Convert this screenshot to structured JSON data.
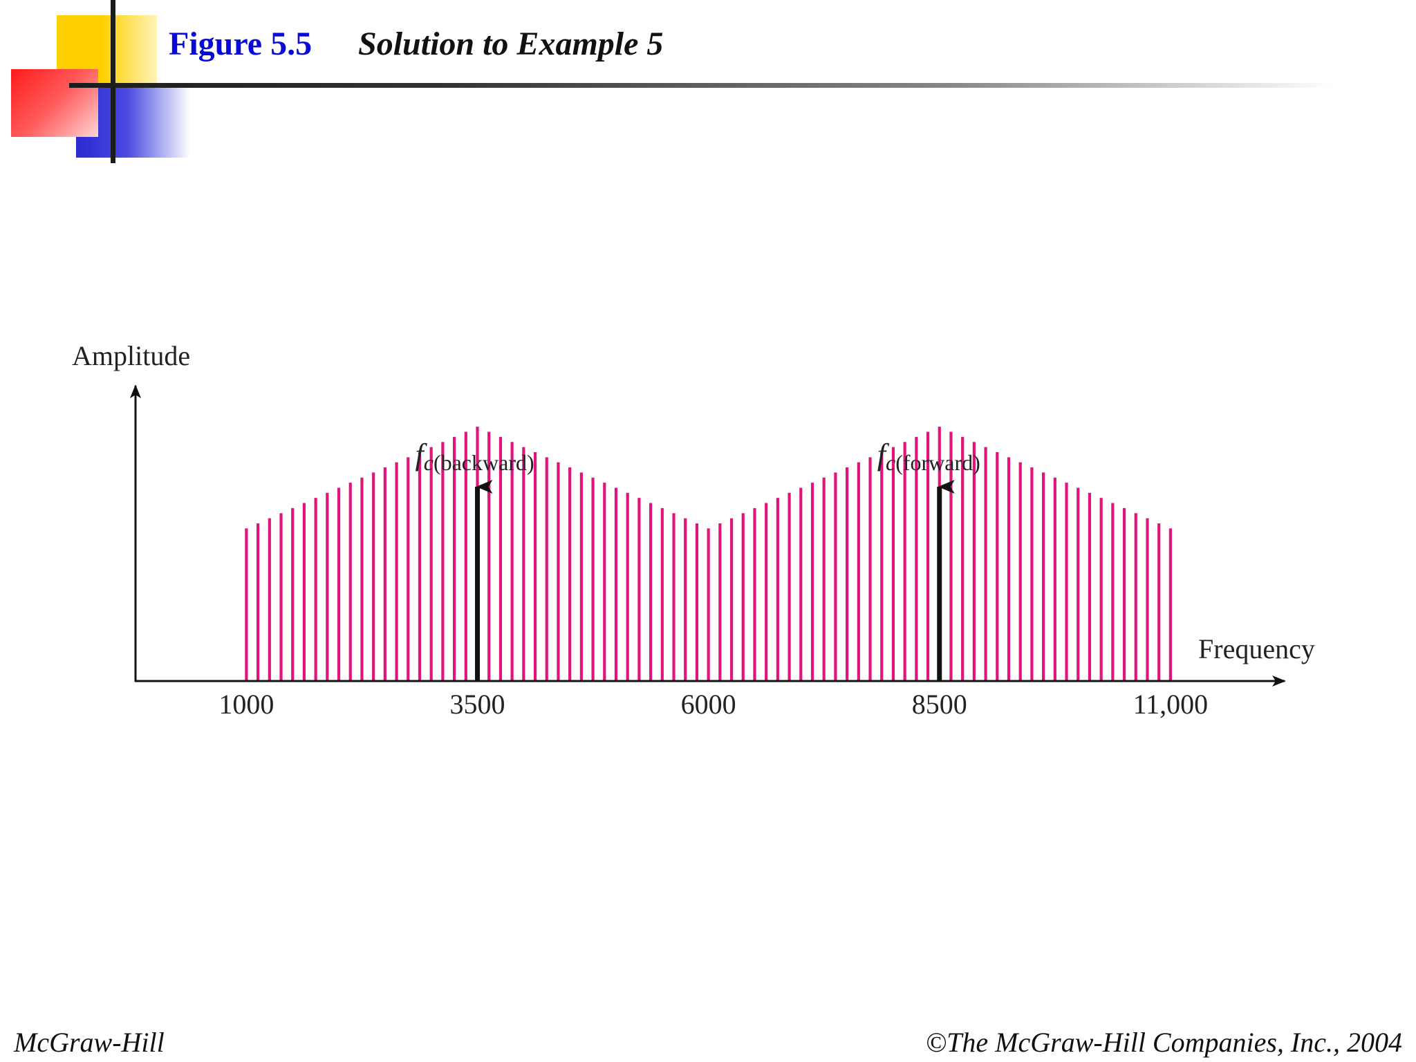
{
  "header": {
    "figure_number": "Figure 5.5",
    "caption": "Solution to Example 5"
  },
  "footer": {
    "left": "McGraw-Hill",
    "right": "©The McGraw-Hill Companies, Inc., 2004"
  },
  "chart_data": {
    "type": "area",
    "ylabel": "Amplitude",
    "xlabel": "Frequency",
    "x_ticks": [
      {
        "value": 1000,
        "label": "1000"
      },
      {
        "value": 3500,
        "label": "3500"
      },
      {
        "value": 6000,
        "label": "6000"
      },
      {
        "value": 8500,
        "label": "8500"
      },
      {
        "value": 11000,
        "label": "11,000"
      }
    ],
    "xlim": [
      -200,
      12400
    ],
    "ylim": [
      0,
      1.15
    ],
    "series": [
      {
        "x": [
          1000,
          3500,
          6000,
          8500,
          11000
        ],
        "y": [
          0.6,
          1.0,
          0.6,
          1.0,
          0.6
        ]
      }
    ],
    "fill_style": "vertical-stripes",
    "color": "#e0147a",
    "carriers": [
      {
        "x": 3500,
        "symbol": "f",
        "subscript_var": "c",
        "subscript_text": "(backward)"
      },
      {
        "x": 8500,
        "symbol": "f",
        "subscript_var": "c",
        "subscript_text": "(forward)"
      }
    ],
    "grid": false
  }
}
